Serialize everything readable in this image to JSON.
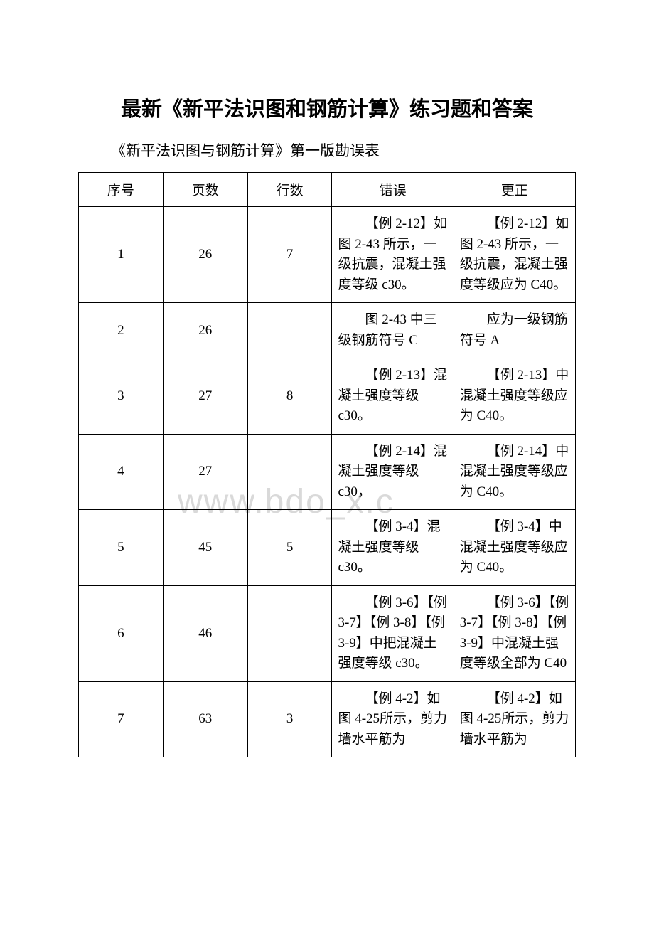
{
  "title": "最新《新平法识图和钢筋计算》练习题和答案",
  "subtitle": "《新平法识图与钢筋计算》第一版勘误表",
  "watermark": "www.bdo_x.c",
  "table": {
    "headers": {
      "seq": "序号",
      "page": "页数",
      "line": "行数",
      "error": "错误",
      "correction": "更正"
    },
    "rows": [
      {
        "seq": "1",
        "page": "26",
        "line": "7",
        "error": "【例 2-12】如图 2-43 所示，一级抗震，混凝土强度等级 c30。",
        "correction": "【例 2-12】如图 2-43 所示，一级抗震，混凝土强度等级应为 C40。"
      },
      {
        "seq": "2",
        "page": "26",
        "line": "",
        "error": "图 2-43 中三级钢筋符号 C",
        "correction": "应为一级钢筋符号 A"
      },
      {
        "seq": "3",
        "page": "27",
        "line": "8",
        "error": "【例 2-13】混凝土强度等级 c30。",
        "correction": "【例 2-13】中混凝土强度等级应为 C40。"
      },
      {
        "seq": "4",
        "page": "27",
        "line": "",
        "error": "【例 2-14】混凝土强度等级 c30，",
        "correction": "【例 2-14】中混凝土强度等级应为 C40。"
      },
      {
        "seq": "5",
        "page": "45",
        "line": "5",
        "error": "【例 3-4】混凝土强度等级 c30。",
        "correction": "【例 3-4】中混凝土强度等级应为 C40。"
      },
      {
        "seq": "6",
        "page": "46",
        "line": "",
        "error": "【例 3-6】【例 3-7】【例 3-8】【例 3-9】中把混凝土强度等级 c30。",
        "correction": "【例 3-6】【例 3-7】【例 3-8】【例 3-9】中混凝土强度等级全部为 C40"
      },
      {
        "seq": "7",
        "page": "63",
        "line": "3",
        "error": "【例 4-2】如图 4-25所示，剪力墙水平筋为",
        "correction": "【例 4-2】如图 4-25所示，剪力墙水平筋为"
      }
    ]
  }
}
